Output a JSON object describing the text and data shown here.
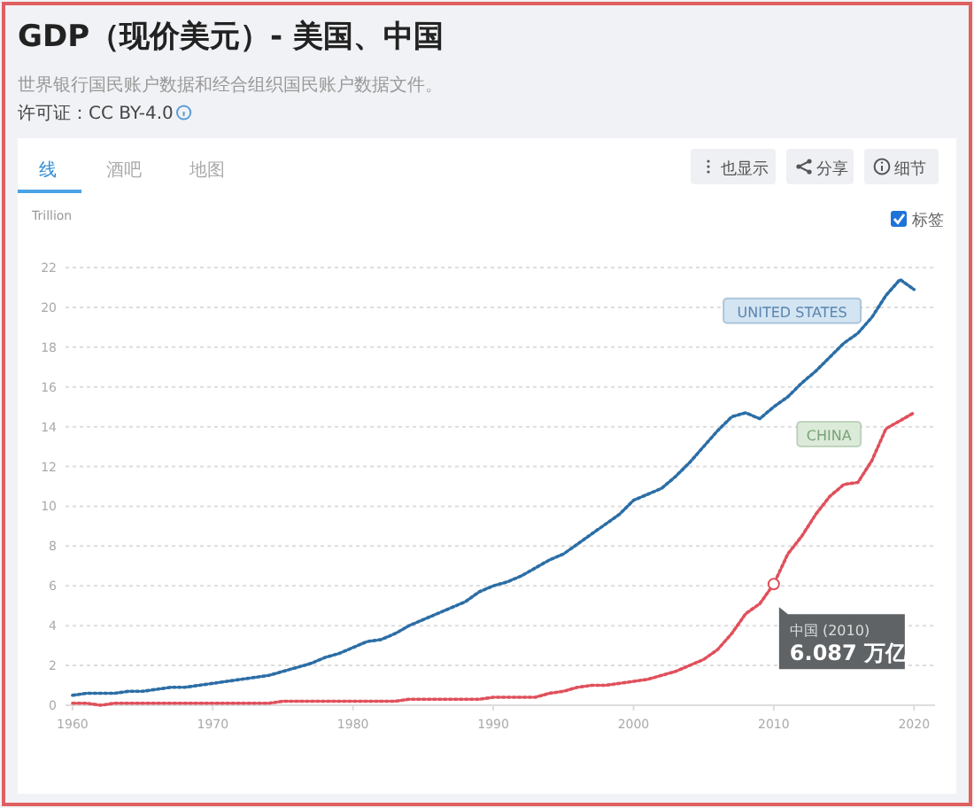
{
  "chart_data": {
    "type": "line",
    "title": "GDP（现价美元）- 美国、中国",
    "subtitle": "世界银行国民账户数据和经合组织国民账户数据文件。",
    "ylabel": "Trillion",
    "x": [
      1960,
      1961,
      1962,
      1963,
      1964,
      1965,
      1966,
      1967,
      1968,
      1969,
      1970,
      1971,
      1972,
      1973,
      1974,
      1975,
      1976,
      1977,
      1978,
      1979,
      1980,
      1981,
      1982,
      1983,
      1984,
      1985,
      1986,
      1987,
      1988,
      1989,
      1990,
      1991,
      1992,
      1993,
      1994,
      1995,
      1996,
      1997,
      1998,
      1999,
      2000,
      2001,
      2002,
      2003,
      2004,
      2005,
      2006,
      2007,
      2008,
      2009,
      2010,
      2011,
      2012,
      2013,
      2014,
      2015,
      2016,
      2017,
      2018,
      2019,
      2020
    ],
    "series": [
      {
        "name": "UNITED STATES",
        "color": "#2c6ea6",
        "values": [
          0.5,
          0.6,
          0.6,
          0.6,
          0.7,
          0.7,
          0.8,
          0.9,
          0.9,
          1.0,
          1.1,
          1.2,
          1.3,
          1.4,
          1.5,
          1.7,
          1.9,
          2.1,
          2.4,
          2.6,
          2.9,
          3.2,
          3.3,
          3.6,
          4.0,
          4.3,
          4.6,
          4.9,
          5.2,
          5.7,
          6.0,
          6.2,
          6.5,
          6.9,
          7.3,
          7.6,
          8.1,
          8.6,
          9.1,
          9.6,
          10.3,
          10.6,
          10.9,
          11.5,
          12.2,
          13.0,
          13.8,
          14.5,
          14.7,
          14.4,
          15.0,
          15.5,
          16.2,
          16.8,
          17.5,
          18.2,
          18.7,
          19.5,
          20.6,
          21.4,
          20.9
        ]
      },
      {
        "name": "CHINA",
        "color": "#e0505c",
        "values": [
          0.1,
          0.1,
          0.0,
          0.1,
          0.1,
          0.1,
          0.1,
          0.1,
          0.1,
          0.1,
          0.1,
          0.1,
          0.1,
          0.1,
          0.1,
          0.2,
          0.2,
          0.2,
          0.2,
          0.2,
          0.2,
          0.2,
          0.2,
          0.2,
          0.3,
          0.3,
          0.3,
          0.3,
          0.3,
          0.3,
          0.4,
          0.4,
          0.4,
          0.4,
          0.6,
          0.7,
          0.9,
          1.0,
          1.0,
          1.1,
          1.2,
          1.3,
          1.5,
          1.7,
          2.0,
          2.3,
          2.8,
          3.6,
          4.6,
          5.1,
          6.087,
          7.6,
          8.5,
          9.6,
          10.5,
          11.1,
          11.2,
          12.3,
          13.9,
          14.3,
          14.7
        ]
      }
    ],
    "xlim": [
      1959.5,
      2021.5
    ],
    "xticks": [
      1960,
      1970,
      1980,
      1990,
      2000,
      2010,
      2020
    ],
    "ylim": [
      0,
      22
    ],
    "yticks": [
      0,
      2,
      4,
      6,
      8,
      10,
      12,
      14,
      16,
      18,
      20,
      22
    ],
    "grid": "y",
    "legend": false,
    "line_style": "dotted",
    "annotations": [
      "许可证：CC BY-4.0",
      "线",
      "酒吧",
      "地图",
      "也显示",
      "分享",
      "细节",
      "标签",
      {
        "text": "中国 (2010)",
        "x": 2010,
        "y": 6.087
      },
      {
        "text": "6.087 万亿",
        "x": 2010,
        "y": 6.087
      }
    ]
  }
}
